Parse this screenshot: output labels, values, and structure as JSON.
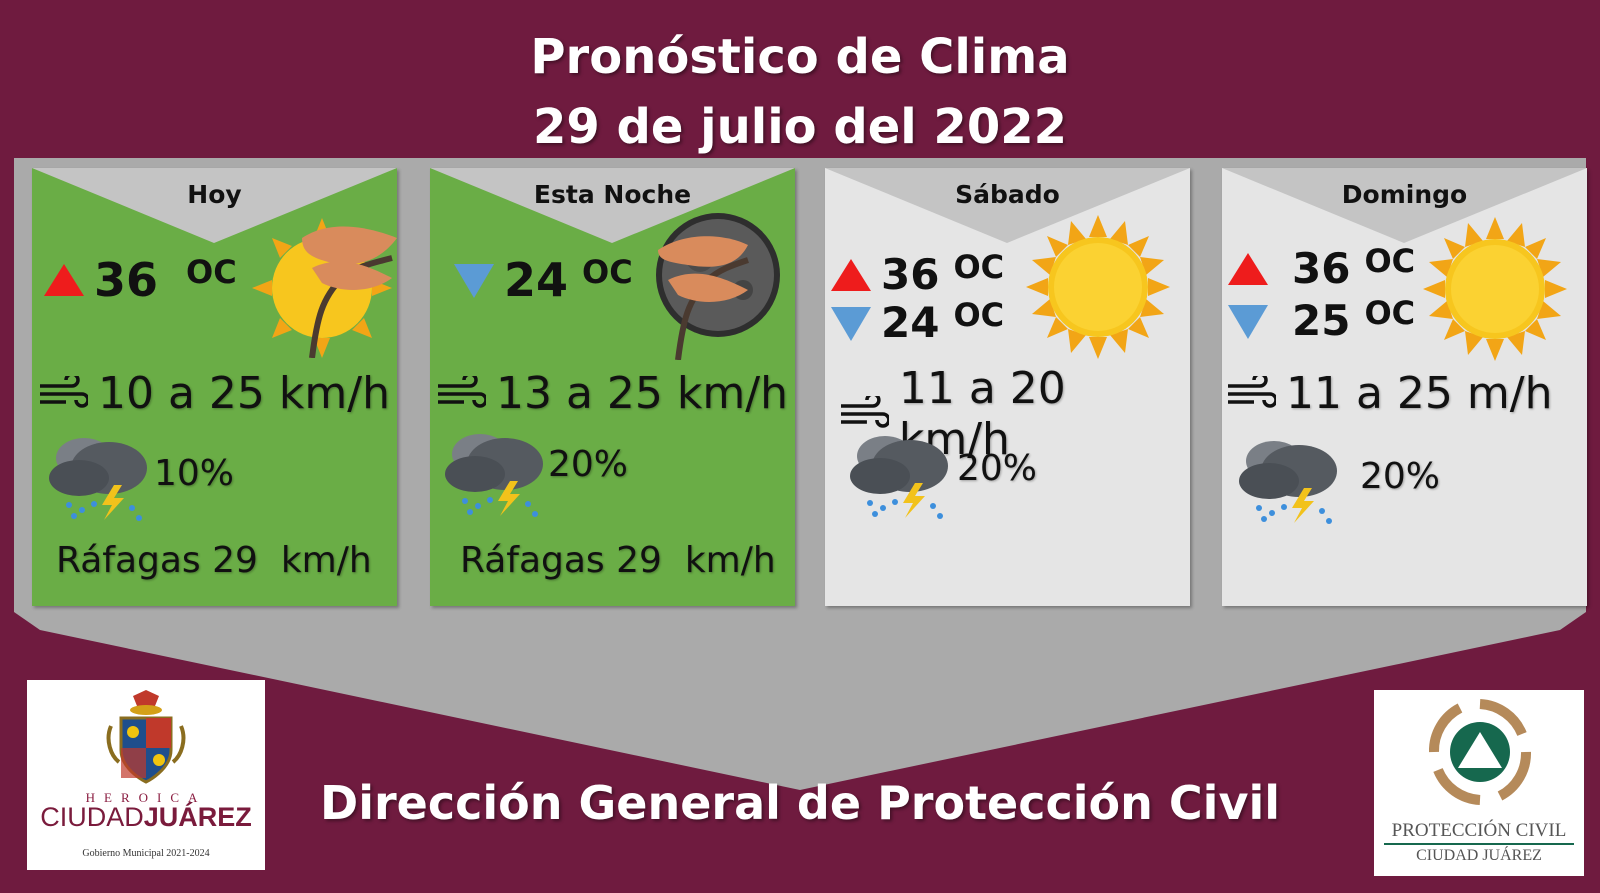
{
  "header": {
    "title_line1": "Pronóstico de Clima",
    "title_line2": "29 de julio del 2022"
  },
  "colors": {
    "background": "#6f1b3f",
    "band": "#aaaaaa",
    "card_today": "#6aad46",
    "card_weekend": "#e5e5e5",
    "notch": "#c4c4c4",
    "arrow_up": "#ee1c1c",
    "arrow_down": "#5b9bd5"
  },
  "cards": [
    {
      "day": "Hoy",
      "temps": [
        {
          "dir": "up",
          "value": "36",
          "unit": "OC"
        }
      ],
      "wind": "10 a 25 km/h",
      "rain_probability": "10%",
      "gusts": "Ráfagas 29  km/h",
      "icon": "sun-with-windy-tree-icon"
    },
    {
      "day": "Esta Noche",
      "temps": [
        {
          "dir": "down",
          "value": "24",
          "unit": "OC"
        }
      ],
      "wind": "13 a 25 km/h",
      "rain_probability": "20%",
      "gusts": "Ráfagas 29  km/h",
      "icon": "moon-with-windy-tree-icon"
    },
    {
      "day": "Sábado",
      "temps": [
        {
          "dir": "up",
          "value": "36",
          "unit": "OC"
        },
        {
          "dir": "down",
          "value": "24",
          "unit": "OC"
        }
      ],
      "wind": "11 a 20 km/h",
      "rain_probability": "20%",
      "icon": "sun-icon"
    },
    {
      "day": "Domingo",
      "temps": [
        {
          "dir": "up",
          "value": "36",
          "unit": "OC"
        },
        {
          "dir": "down",
          "value": "25",
          "unit": "OC"
        }
      ],
      "wind": "11 a 25 m/h",
      "rain_probability": "20%",
      "icon": "sun-icon"
    }
  ],
  "footer": {
    "title": "Dirección General de Protección Civil"
  },
  "logos": {
    "left": {
      "line1": "HEROICA",
      "line2_a": "CIUDAD",
      "line2_b": "JUÁREZ",
      "line3": "Gobierno Municipal 2021-2024"
    },
    "right": {
      "line1": "PROTECCIÓN CIVIL",
      "line2": "CIUDAD JUÁREZ"
    }
  }
}
